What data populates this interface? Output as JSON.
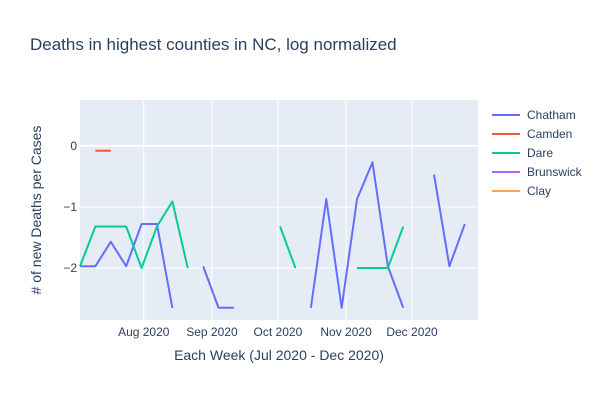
{
  "chart_data": {
    "type": "line",
    "title": "Deaths in highest counties in NC, log normalized",
    "xlabel": "Each Week (Jul 2020 - Dec 2020)",
    "ylabel": "# of new Deaths per Cases",
    "x_range": [
      "2020-07-03",
      "2020-12-31"
    ],
    "ylim": [
      -2.85,
      0.75
    ],
    "y_ticks": [
      0,
      -1,
      -2
    ],
    "y_tick_labels": [
      "0",
      "−1",
      "−2"
    ],
    "x_ticks": [
      {
        "date": "2020-08-01",
        "label": "Aug 2020"
      },
      {
        "date": "2020-09-01",
        "label": "Sep 2020"
      },
      {
        "date": "2020-10-01",
        "label": "Oct 2020"
      },
      {
        "date": "2020-11-01",
        "label": "Nov 2020"
      },
      {
        "date": "2020-12-01",
        "label": "Dec 2020"
      }
    ],
    "grid": true,
    "legend_position": "top-right",
    "series": [
      {
        "name": "Chatham",
        "color": "#636efa",
        "points": [
          {
            "x": "2020-07-03",
            "y": -1.97
          },
          {
            "x": "2020-07-10",
            "y": -1.97
          },
          {
            "x": "2020-07-17",
            "y": -1.57
          },
          {
            "x": "2020-07-24",
            "y": -1.97
          },
          {
            "x": "2020-07-31",
            "y": -1.28
          },
          {
            "x": "2020-08-07",
            "y": -1.28
          },
          {
            "x": "2020-08-14",
            "y": -2.65
          },
          {
            "x": "2020-08-21",
            "y": null
          },
          {
            "x": "2020-08-28",
            "y": -1.97
          },
          {
            "x": "2020-09-04",
            "y": -2.65
          },
          {
            "x": "2020-09-11",
            "y": -2.65
          },
          {
            "x": "2020-09-18",
            "y": null
          },
          {
            "x": "2020-09-25",
            "y": null
          },
          {
            "x": "2020-10-02",
            "y": null
          },
          {
            "x": "2020-10-09",
            "y": null
          },
          {
            "x": "2020-10-16",
            "y": -2.65
          },
          {
            "x": "2020-10-23",
            "y": -0.87
          },
          {
            "x": "2020-10-30",
            "y": -2.65
          },
          {
            "x": "2020-11-06",
            "y": -0.87
          },
          {
            "x": "2020-11-13",
            "y": -0.27
          },
          {
            "x": "2020-11-20",
            "y": -1.97
          },
          {
            "x": "2020-11-27",
            "y": -2.65
          },
          {
            "x": "2020-12-04",
            "y": null
          },
          {
            "x": "2020-12-11",
            "y": -0.47
          },
          {
            "x": "2020-12-18",
            "y": -1.97
          },
          {
            "x": "2020-12-25",
            "y": -1.28
          }
        ]
      },
      {
        "name": "Camden",
        "color": "#ef553b",
        "points": [
          {
            "x": "2020-07-10",
            "y": -0.08
          },
          {
            "x": "2020-07-17",
            "y": -0.08
          }
        ]
      },
      {
        "name": "Dare",
        "color": "#00cc96",
        "points": [
          {
            "x": "2020-07-03",
            "y": -1.97
          },
          {
            "x": "2020-07-10",
            "y": -1.32
          },
          {
            "x": "2020-07-17",
            "y": -1.32
          },
          {
            "x": "2020-07-24",
            "y": -1.32
          },
          {
            "x": "2020-07-31",
            "y": -2.0
          },
          {
            "x": "2020-08-07",
            "y": -1.32
          },
          {
            "x": "2020-08-14",
            "y": -0.91
          },
          {
            "x": "2020-08-21",
            "y": -2.0
          },
          {
            "x": "2020-08-28",
            "y": null
          },
          {
            "x": "2020-09-04",
            "y": null
          },
          {
            "x": "2020-09-11",
            "y": null
          },
          {
            "x": "2020-09-18",
            "y": null
          },
          {
            "x": "2020-09-25",
            "y": null
          },
          {
            "x": "2020-10-02",
            "y": -1.32
          },
          {
            "x": "2020-10-09",
            "y": -2.0
          },
          {
            "x": "2020-10-16",
            "y": null
          },
          {
            "x": "2020-10-23",
            "y": null
          },
          {
            "x": "2020-10-30",
            "y": null
          },
          {
            "x": "2020-11-06",
            "y": -2.0
          },
          {
            "x": "2020-11-13",
            "y": -2.0
          },
          {
            "x": "2020-11-20",
            "y": -2.0
          },
          {
            "x": "2020-11-27",
            "y": -1.32
          }
        ]
      },
      {
        "name": "Brunswick",
        "color": "#ab63fa",
        "points": []
      },
      {
        "name": "Clay",
        "color": "#ffa15a",
        "points": []
      }
    ]
  }
}
